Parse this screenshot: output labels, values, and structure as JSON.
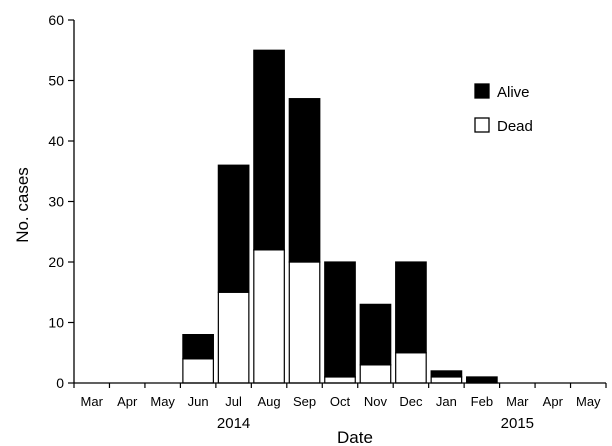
{
  "chart_data": {
    "type": "bar",
    "stacked": true,
    "categories": [
      "Mar",
      "Apr",
      "May",
      "Jun",
      "Jul",
      "Aug",
      "Sep",
      "Oct",
      "Nov",
      "Dec",
      "Jan",
      "Feb",
      "Mar",
      "Apr",
      "May"
    ],
    "year_labels": [
      {
        "text": "2014",
        "under_category_index": 4
      },
      {
        "text": "2015",
        "under_category_index": 12
      }
    ],
    "series": [
      {
        "name": "Dead",
        "color": "#ffffff",
        "values": [
          0,
          0,
          0,
          4,
          15,
          22,
          20,
          1,
          3,
          5,
          1,
          0,
          0,
          0,
          0
        ]
      },
      {
        "name": "Alive",
        "color": "#000000",
        "values": [
          0,
          0,
          0,
          4,
          21,
          33,
          27,
          19,
          10,
          15,
          1,
          1,
          0,
          0,
          0
        ]
      }
    ],
    "legend_order": [
      "Alive",
      "Dead"
    ],
    "xlabel": "Date",
    "ylabel": "No. cases",
    "ylim": [
      0,
      60
    ],
    "yticks": [
      0,
      10,
      20,
      30,
      40,
      50,
      60
    ],
    "grid": false,
    "legend_position": "top-right"
  }
}
